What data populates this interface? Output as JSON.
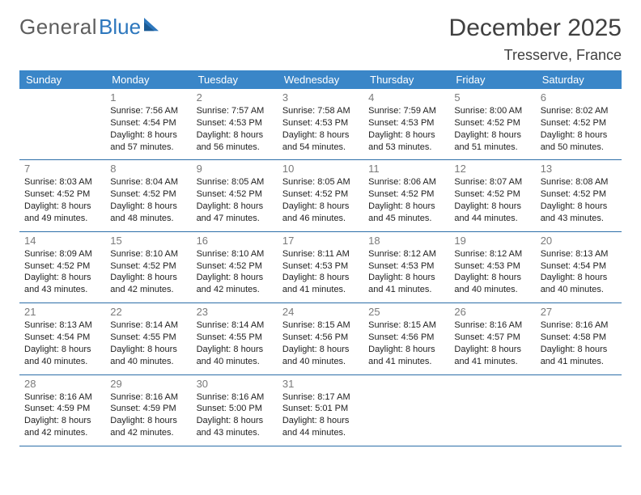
{
  "brand": {
    "part1": "General",
    "part2": "Blue"
  },
  "header": {
    "month_title": "December 2025",
    "location": "Tresserve, France"
  },
  "daynames": [
    "Sunday",
    "Monday",
    "Tuesday",
    "Wednesday",
    "Thursday",
    "Friday",
    "Saturday"
  ],
  "colors": {
    "header_bg": "#3a86c8",
    "rule": "#2d6fa8",
    "brand_blue": "#2d77bd"
  },
  "weeks": [
    [
      null,
      {
        "n": "1",
        "sr": "7:56 AM",
        "ss": "4:54 PM",
        "dl": "8 hours and 57 minutes."
      },
      {
        "n": "2",
        "sr": "7:57 AM",
        "ss": "4:53 PM",
        "dl": "8 hours and 56 minutes."
      },
      {
        "n": "3",
        "sr": "7:58 AM",
        "ss": "4:53 PM",
        "dl": "8 hours and 54 minutes."
      },
      {
        "n": "4",
        "sr": "7:59 AM",
        "ss": "4:53 PM",
        "dl": "8 hours and 53 minutes."
      },
      {
        "n": "5",
        "sr": "8:00 AM",
        "ss": "4:52 PM",
        "dl": "8 hours and 51 minutes."
      },
      {
        "n": "6",
        "sr": "8:02 AM",
        "ss": "4:52 PM",
        "dl": "8 hours and 50 minutes."
      }
    ],
    [
      {
        "n": "7",
        "sr": "8:03 AM",
        "ss": "4:52 PM",
        "dl": "8 hours and 49 minutes."
      },
      {
        "n": "8",
        "sr": "8:04 AM",
        "ss": "4:52 PM",
        "dl": "8 hours and 48 minutes."
      },
      {
        "n": "9",
        "sr": "8:05 AM",
        "ss": "4:52 PM",
        "dl": "8 hours and 47 minutes."
      },
      {
        "n": "10",
        "sr": "8:05 AM",
        "ss": "4:52 PM",
        "dl": "8 hours and 46 minutes."
      },
      {
        "n": "11",
        "sr": "8:06 AM",
        "ss": "4:52 PM",
        "dl": "8 hours and 45 minutes."
      },
      {
        "n": "12",
        "sr": "8:07 AM",
        "ss": "4:52 PM",
        "dl": "8 hours and 44 minutes."
      },
      {
        "n": "13",
        "sr": "8:08 AM",
        "ss": "4:52 PM",
        "dl": "8 hours and 43 minutes."
      }
    ],
    [
      {
        "n": "14",
        "sr": "8:09 AM",
        "ss": "4:52 PM",
        "dl": "8 hours and 43 minutes."
      },
      {
        "n": "15",
        "sr": "8:10 AM",
        "ss": "4:52 PM",
        "dl": "8 hours and 42 minutes."
      },
      {
        "n": "16",
        "sr": "8:10 AM",
        "ss": "4:52 PM",
        "dl": "8 hours and 42 minutes."
      },
      {
        "n": "17",
        "sr": "8:11 AM",
        "ss": "4:53 PM",
        "dl": "8 hours and 41 minutes."
      },
      {
        "n": "18",
        "sr": "8:12 AM",
        "ss": "4:53 PM",
        "dl": "8 hours and 41 minutes."
      },
      {
        "n": "19",
        "sr": "8:12 AM",
        "ss": "4:53 PM",
        "dl": "8 hours and 40 minutes."
      },
      {
        "n": "20",
        "sr": "8:13 AM",
        "ss": "4:54 PM",
        "dl": "8 hours and 40 minutes."
      }
    ],
    [
      {
        "n": "21",
        "sr": "8:13 AM",
        "ss": "4:54 PM",
        "dl": "8 hours and 40 minutes."
      },
      {
        "n": "22",
        "sr": "8:14 AM",
        "ss": "4:55 PM",
        "dl": "8 hours and 40 minutes."
      },
      {
        "n": "23",
        "sr": "8:14 AM",
        "ss": "4:55 PM",
        "dl": "8 hours and 40 minutes."
      },
      {
        "n": "24",
        "sr": "8:15 AM",
        "ss": "4:56 PM",
        "dl": "8 hours and 40 minutes."
      },
      {
        "n": "25",
        "sr": "8:15 AM",
        "ss": "4:56 PM",
        "dl": "8 hours and 41 minutes."
      },
      {
        "n": "26",
        "sr": "8:16 AM",
        "ss": "4:57 PM",
        "dl": "8 hours and 41 minutes."
      },
      {
        "n": "27",
        "sr": "8:16 AM",
        "ss": "4:58 PM",
        "dl": "8 hours and 41 minutes."
      }
    ],
    [
      {
        "n": "28",
        "sr": "8:16 AM",
        "ss": "4:59 PM",
        "dl": "8 hours and 42 minutes."
      },
      {
        "n": "29",
        "sr": "8:16 AM",
        "ss": "4:59 PM",
        "dl": "8 hours and 42 minutes."
      },
      {
        "n": "30",
        "sr": "8:16 AM",
        "ss": "5:00 PM",
        "dl": "8 hours and 43 minutes."
      },
      {
        "n": "31",
        "sr": "8:17 AM",
        "ss": "5:01 PM",
        "dl": "8 hours and 44 minutes."
      },
      null,
      null,
      null
    ]
  ],
  "labels": {
    "sunrise": "Sunrise: ",
    "sunset": "Sunset: ",
    "daylight": "Daylight: "
  }
}
